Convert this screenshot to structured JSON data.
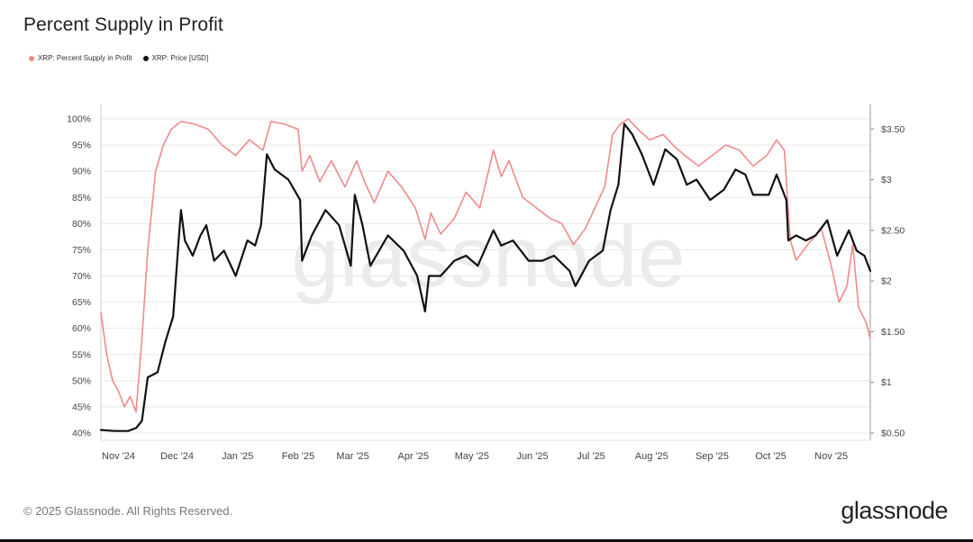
{
  "chart_data": {
    "type": "line",
    "title": "Percent Supply in Profit",
    "watermark": "glassnode",
    "legend_position": "top-left",
    "grid": true,
    "x_ticks": [
      "Nov '24",
      "Dec '24",
      "Jan '25",
      "Feb '25",
      "Mar '25",
      "Apr '25",
      "May '25",
      "Jun '25",
      "Jul '25",
      "Aug '25",
      "Sep '25",
      "Oct '25",
      "Nov '25"
    ],
    "x_range": [
      "2024-10-23",
      "2025-11-21"
    ],
    "y_left": {
      "ticks": [
        "40%",
        "45%",
        "50%",
        "55%",
        "60%",
        "65%",
        "70%",
        "75%",
        "80%",
        "85%",
        "90%",
        "95%",
        "100%"
      ],
      "range": [
        40,
        100
      ]
    },
    "y_right": {
      "ticks": [
        "$0.50",
        "$1",
        "$1.50",
        "$2",
        "$2.50",
        "$3",
        "$3.50"
      ],
      "tick_values": [
        0.5,
        1,
        1.5,
        2,
        2.5,
        3,
        3.5
      ],
      "range": [
        0.5,
        3.6
      ]
    },
    "series": [
      {
        "name": "XRP: Percent Supply in Profit",
        "color": "#f08a8a",
        "axis": "left",
        "points": [
          [
            "2024-10-23",
            63
          ],
          [
            "2024-10-26",
            55
          ],
          [
            "2024-10-29",
            50
          ],
          [
            "2024-11-01",
            48
          ],
          [
            "2024-11-04",
            45
          ],
          [
            "2024-11-07",
            47
          ],
          [
            "2024-11-10",
            44
          ],
          [
            "2024-11-13",
            58
          ],
          [
            "2024-11-16",
            75
          ],
          [
            "2024-11-20",
            90
          ],
          [
            "2024-11-24",
            95
          ],
          [
            "2024-11-28",
            98
          ],
          [
            "2024-12-03",
            99.5
          ],
          [
            "2024-12-10",
            99
          ],
          [
            "2024-12-17",
            98
          ],
          [
            "2024-12-24",
            95
          ],
          [
            "2024-12-31",
            93
          ],
          [
            "2025-01-07",
            96
          ],
          [
            "2025-01-14",
            94
          ],
          [
            "2025-01-18",
            99.5
          ],
          [
            "2025-01-25",
            99
          ],
          [
            "2025-02-01",
            98
          ],
          [
            "2025-02-03",
            90
          ],
          [
            "2025-02-07",
            93
          ],
          [
            "2025-02-12",
            88
          ],
          [
            "2025-02-18",
            92
          ],
          [
            "2025-02-25",
            87
          ],
          [
            "2025-03-03",
            92
          ],
          [
            "2025-03-07",
            88
          ],
          [
            "2025-03-12",
            84
          ],
          [
            "2025-03-19",
            90
          ],
          [
            "2025-03-26",
            87
          ],
          [
            "2025-04-02",
            83
          ],
          [
            "2025-04-07",
            77
          ],
          [
            "2025-04-10",
            82
          ],
          [
            "2025-04-15",
            78
          ],
          [
            "2025-04-22",
            81
          ],
          [
            "2025-04-28",
            86
          ],
          [
            "2025-05-05",
            83
          ],
          [
            "2025-05-12",
            94
          ],
          [
            "2025-05-16",
            89
          ],
          [
            "2025-05-20",
            92
          ],
          [
            "2025-05-27",
            85
          ],
          [
            "2025-06-03",
            83
          ],
          [
            "2025-06-10",
            81
          ],
          [
            "2025-06-16",
            80
          ],
          [
            "2025-06-22",
            76
          ],
          [
            "2025-06-28",
            79
          ],
          [
            "2025-07-03",
            83
          ],
          [
            "2025-07-08",
            87
          ],
          [
            "2025-07-12",
            97
          ],
          [
            "2025-07-16",
            99
          ],
          [
            "2025-07-20",
            100
          ],
          [
            "2025-07-25",
            98
          ],
          [
            "2025-07-31",
            96
          ],
          [
            "2025-08-07",
            97
          ],
          [
            "2025-08-12",
            95
          ],
          [
            "2025-08-18",
            93
          ],
          [
            "2025-08-25",
            91
          ],
          [
            "2025-09-01",
            93
          ],
          [
            "2025-09-08",
            95
          ],
          [
            "2025-09-15",
            94
          ],
          [
            "2025-09-22",
            91
          ],
          [
            "2025-09-29",
            93
          ],
          [
            "2025-10-04",
            96
          ],
          [
            "2025-10-08",
            94
          ],
          [
            "2025-10-11",
            77
          ],
          [
            "2025-10-14",
            73
          ],
          [
            "2025-10-20",
            76
          ],
          [
            "2025-10-27",
            79
          ],
          [
            "2025-11-01",
            72
          ],
          [
            "2025-11-05",
            65
          ],
          [
            "2025-11-09",
            68
          ],
          [
            "2025-11-12",
            76
          ],
          [
            "2025-11-15",
            64
          ],
          [
            "2025-11-19",
            61
          ],
          [
            "2025-11-21",
            58
          ]
        ]
      },
      {
        "name": "XRP: Price [USD]",
        "color": "#111111",
        "axis": "right",
        "points": [
          [
            "2024-10-23",
            0.53
          ],
          [
            "2024-10-30",
            0.52
          ],
          [
            "2024-11-06",
            0.52
          ],
          [
            "2024-11-10",
            0.55
          ],
          [
            "2024-11-13",
            0.62
          ],
          [
            "2024-11-16",
            1.05
          ],
          [
            "2024-11-21",
            1.1
          ],
          [
            "2024-11-25",
            1.4
          ],
          [
            "2024-11-29",
            1.65
          ],
          [
            "2024-12-02",
            2.45
          ],
          [
            "2024-12-03",
            2.7
          ],
          [
            "2024-12-05",
            2.4
          ],
          [
            "2024-12-09",
            2.25
          ],
          [
            "2024-12-13",
            2.45
          ],
          [
            "2024-12-16",
            2.55
          ],
          [
            "2024-12-20",
            2.2
          ],
          [
            "2024-12-25",
            2.3
          ],
          [
            "2024-12-31",
            2.05
          ],
          [
            "2025-01-06",
            2.4
          ],
          [
            "2025-01-10",
            2.35
          ],
          [
            "2025-01-13",
            2.55
          ],
          [
            "2025-01-16",
            3.25
          ],
          [
            "2025-01-20",
            3.1
          ],
          [
            "2025-01-27",
            3.0
          ],
          [
            "2025-02-02",
            2.8
          ],
          [
            "2025-02-03",
            2.2
          ],
          [
            "2025-02-08",
            2.45
          ],
          [
            "2025-02-15",
            2.7
          ],
          [
            "2025-02-22",
            2.55
          ],
          [
            "2025-02-28",
            2.15
          ],
          [
            "2025-03-02",
            2.85
          ],
          [
            "2025-03-06",
            2.55
          ],
          [
            "2025-03-10",
            2.15
          ],
          [
            "2025-03-19",
            2.45
          ],
          [
            "2025-03-27",
            2.3
          ],
          [
            "2025-04-03",
            2.05
          ],
          [
            "2025-04-07",
            1.7
          ],
          [
            "2025-04-09",
            2.05
          ],
          [
            "2025-04-15",
            2.05
          ],
          [
            "2025-04-22",
            2.2
          ],
          [
            "2025-04-28",
            2.25
          ],
          [
            "2025-05-04",
            2.15
          ],
          [
            "2025-05-12",
            2.5
          ],
          [
            "2025-05-16",
            2.35
          ],
          [
            "2025-05-22",
            2.4
          ],
          [
            "2025-05-30",
            2.2
          ],
          [
            "2025-06-06",
            2.2
          ],
          [
            "2025-06-12",
            2.25
          ],
          [
            "2025-06-20",
            2.1
          ],
          [
            "2025-06-23",
            1.95
          ],
          [
            "2025-06-30",
            2.2
          ],
          [
            "2025-07-07",
            2.3
          ],
          [
            "2025-07-11",
            2.7
          ],
          [
            "2025-07-15",
            2.95
          ],
          [
            "2025-07-18",
            3.55
          ],
          [
            "2025-07-22",
            3.45
          ],
          [
            "2025-07-27",
            3.25
          ],
          [
            "2025-08-02",
            2.95
          ],
          [
            "2025-08-08",
            3.3
          ],
          [
            "2025-08-14",
            3.2
          ],
          [
            "2025-08-19",
            2.95
          ],
          [
            "2025-08-24",
            3.0
          ],
          [
            "2025-08-31",
            2.8
          ],
          [
            "2025-09-07",
            2.9
          ],
          [
            "2025-09-13",
            3.1
          ],
          [
            "2025-09-18",
            3.05
          ],
          [
            "2025-09-22",
            2.85
          ],
          [
            "2025-09-30",
            2.85
          ],
          [
            "2025-10-04",
            3.05
          ],
          [
            "2025-10-09",
            2.8
          ],
          [
            "2025-10-10",
            2.4
          ],
          [
            "2025-10-14",
            2.45
          ],
          [
            "2025-10-19",
            2.4
          ],
          [
            "2025-10-24",
            2.45
          ],
          [
            "2025-10-30",
            2.6
          ],
          [
            "2025-11-04",
            2.25
          ],
          [
            "2025-11-10",
            2.5
          ],
          [
            "2025-11-14",
            2.3
          ],
          [
            "2025-11-18",
            2.25
          ],
          [
            "2025-11-21",
            2.1
          ]
        ]
      }
    ]
  },
  "footer": {
    "copyright": "© 2025 Glassnode. All Rights Reserved.",
    "logo": "glassnode"
  },
  "colors": {
    "supply": "#f08a8a",
    "price": "#111111",
    "grid": "#e8e8e8",
    "watermark": "#ebebeb"
  }
}
